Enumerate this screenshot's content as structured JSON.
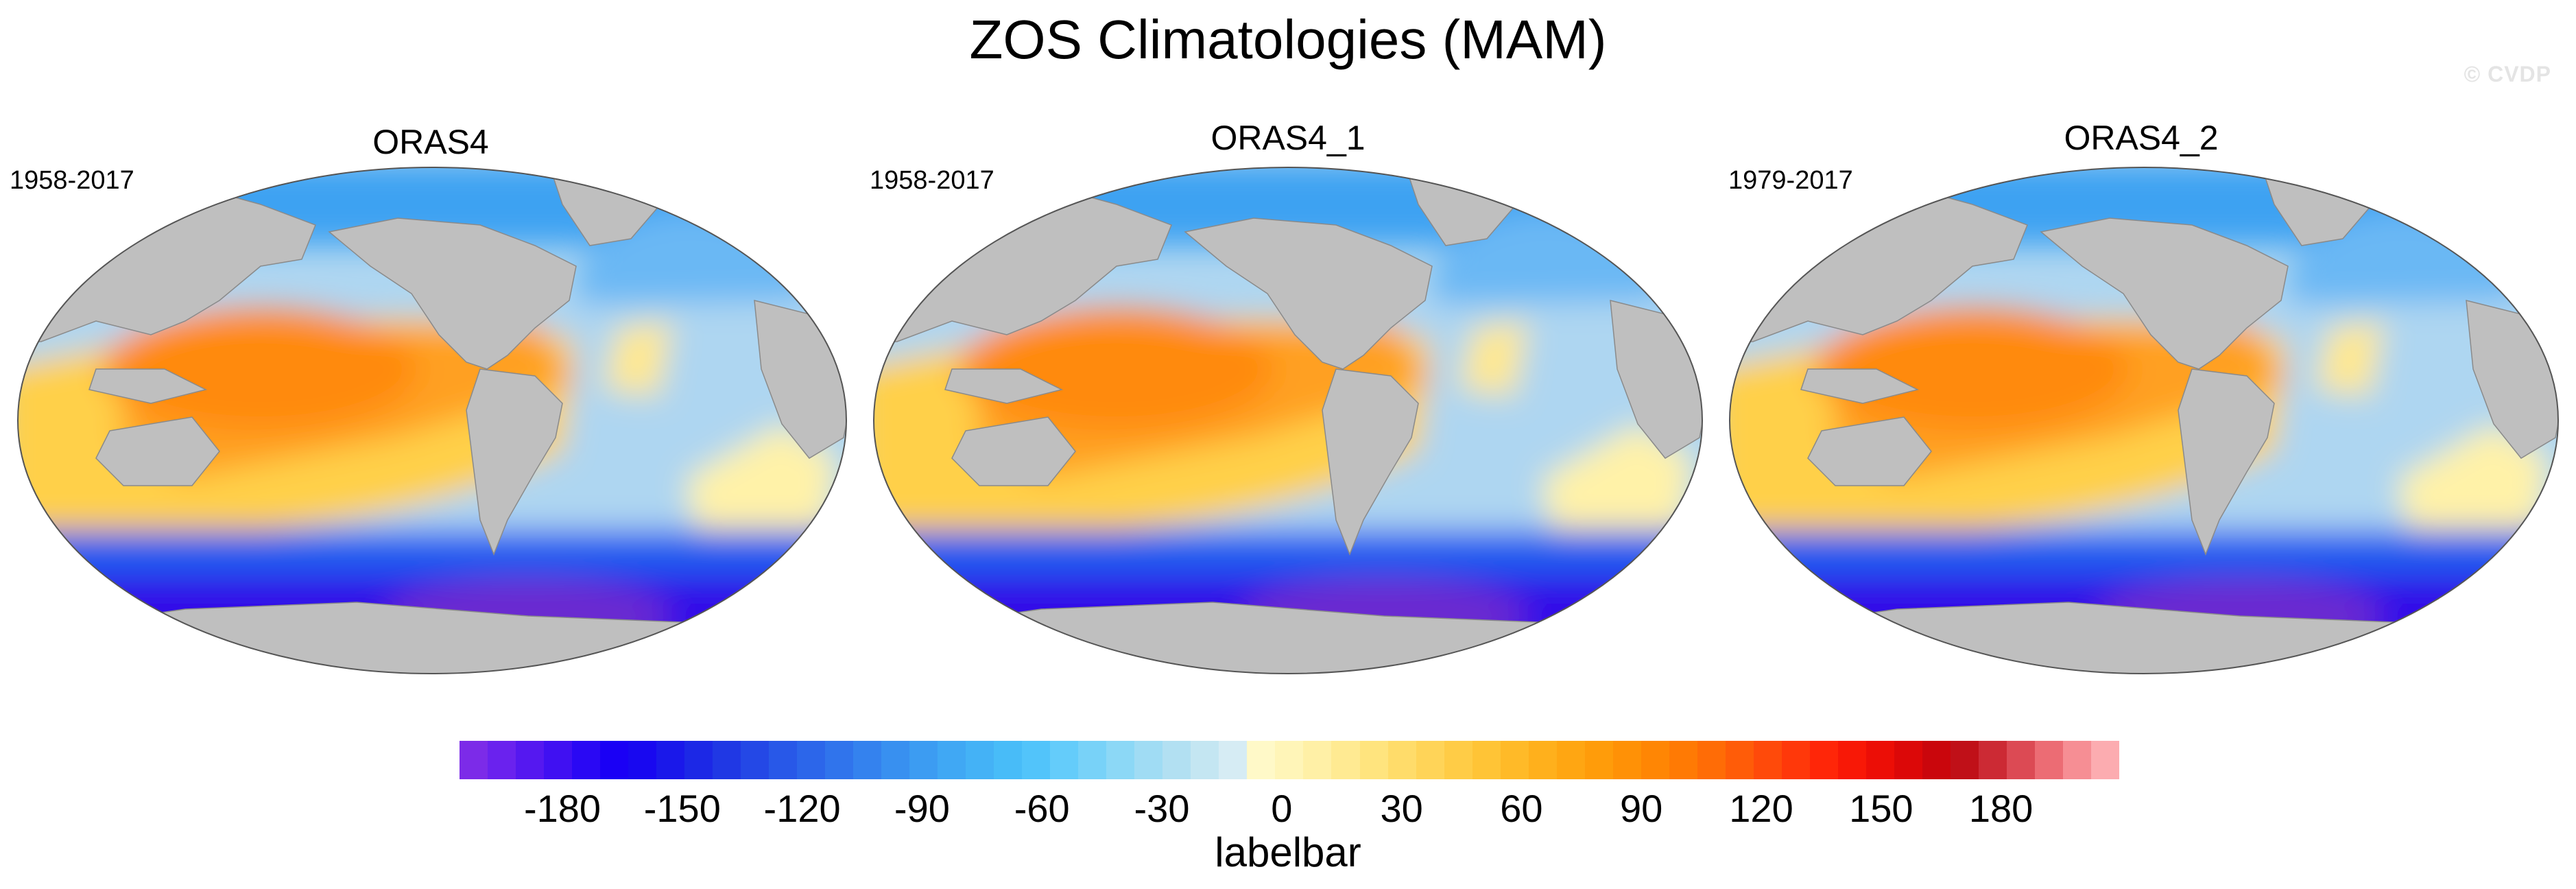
{
  "title": "ZOS Climatologies (MAM)",
  "watermark": "© CVDP",
  "panels": [
    {
      "name": "ORAS4",
      "years": "1958-2017"
    },
    {
      "name": "ORAS4_1",
      "years": "1958-2017"
    },
    {
      "name": "ORAS4_2",
      "years": "1979-2017"
    }
  ],
  "labelbar": {
    "title": "labelbar",
    "ticks": [
      "-180",
      "-150",
      "-120",
      "-90",
      "-60",
      "-30",
      "0",
      "30",
      "60",
      "90",
      "120",
      "150",
      "180"
    ],
    "colors": [
      "#7c2be8",
      "#6a22ee",
      "#5518f0",
      "#4010f2",
      "#2a08f4",
      "#1a00f5",
      "#1808f0",
      "#1a18ea",
      "#1c28e6",
      "#2038e4",
      "#2448e6",
      "#2858e8",
      "#2c66ea",
      "#3074ec",
      "#3482ee",
      "#3890f0",
      "#3c9cf2",
      "#40a8f4",
      "#44b2f6",
      "#48bcf8",
      "#52c4fa",
      "#64ccfa",
      "#78d2f8",
      "#8cd8f6",
      "#a0dcf4",
      "#b2e0f2",
      "#c4e6f2",
      "#d6ecf4",
      "#fff9c8",
      "#fff5b8",
      "#fff0a6",
      "#ffea92",
      "#ffe47e",
      "#ffdc6a",
      "#ffd458",
      "#ffcc46",
      "#ffc436",
      "#ffba28",
      "#ffb01c",
      "#ffa612",
      "#ff9c0a",
      "#ff9106",
      "#ff8604",
      "#ff7a04",
      "#ff6c06",
      "#ff5c08",
      "#ff4a0a",
      "#ff380a",
      "#ff2608",
      "#f81806",
      "#ec0e06",
      "#dc0808",
      "#ca060c",
      "#c01018",
      "#cc2a34",
      "#dc4a54",
      "#ec6c74",
      "#f68e94",
      "#fcacb0"
    ]
  },
  "colors": {
    "land": "#bfbfbf",
    "ocean_background": "#aed6f1",
    "subtropical_gyre": "#ffd048",
    "warm_pool": "#ffa020",
    "warm_core": "#ff8a10",
    "southern_ocean_band": "#1e5cf0",
    "southern_ocean_deep": "#3010e8",
    "southern_ocean_core": "#6a2ad0",
    "arctic": "#3ea2f2",
    "north_atlantic": "#6ab8f4",
    "outline": "#555555"
  }
}
